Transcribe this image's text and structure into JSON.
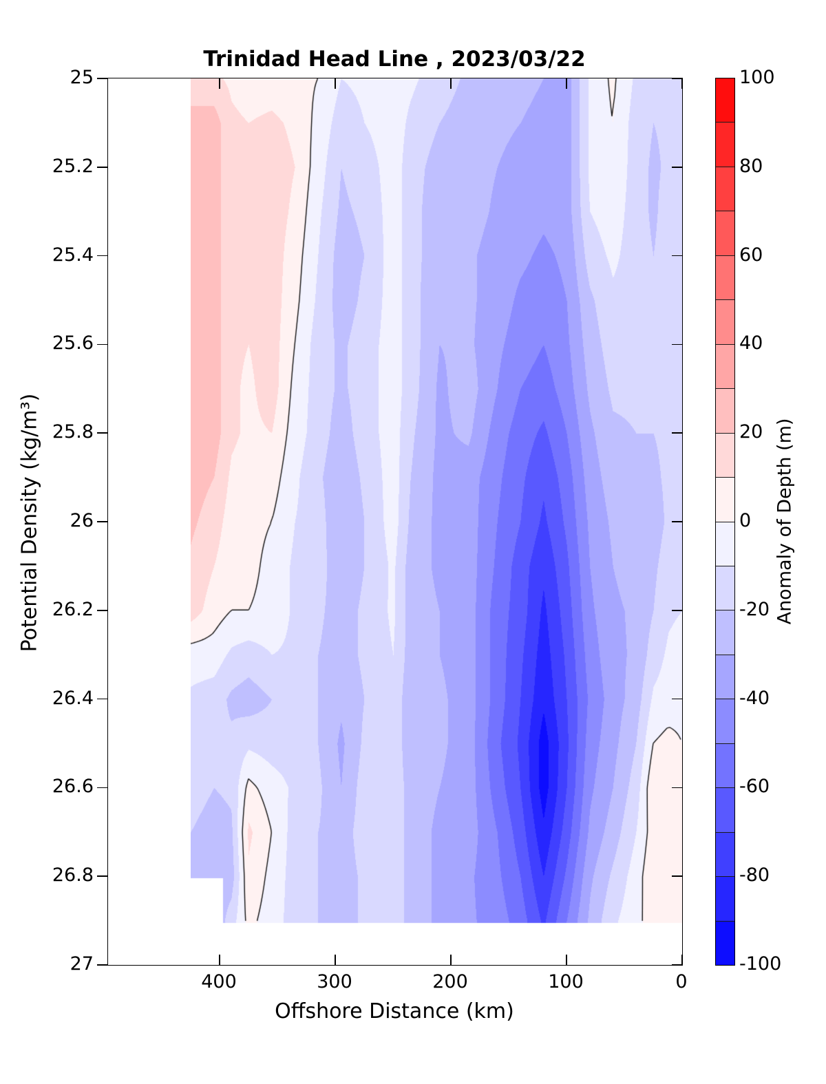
{
  "title": "Trinidad Head Line , 2023/03/22",
  "axes": {
    "xlabel": "Offshore Distance (km)",
    "ylabel": "Potential Density (kg/m³)",
    "x_ticks": [
      400,
      300,
      200,
      100,
      0
    ],
    "y_ticks": [
      25,
      25.2,
      25.4,
      25.6,
      25.8,
      26,
      26.2,
      26.4,
      26.6,
      26.8,
      27
    ]
  },
  "colorbar": {
    "label": "Anomaly of Depth (m)",
    "ticks": [
      100,
      80,
      60,
      40,
      20,
      0,
      -20,
      -40,
      -60,
      -80,
      -100
    ],
    "range": [
      -100,
      100
    ],
    "levels_top_to_bottom": [
      "#ff0d0d",
      "#ff2626",
      "#ff4040",
      "#ff5959",
      "#ff7373",
      "#ff8c8c",
      "#ffa6a6",
      "#ffbfbf",
      "#ffd9d9",
      "#fff2f2",
      "#f2f2ff",
      "#d9d9ff",
      "#bfbfff",
      "#a6a6ff",
      "#8c8cff",
      "#7373ff",
      "#5959ff",
      "#4040ff",
      "#2626ff",
      "#0d0dff"
    ]
  },
  "chart_data": {
    "type": "heatmap",
    "style": "filled-contour-with-zero-contour-lines",
    "title": "Trinidad Head Line , 2023/03/22",
    "xlabel": "Offshore Distance (km)",
    "ylabel": "Potential Density (kg/m³)",
    "zlabel": "Anomaly of Depth (m)",
    "xlim": [
      0,
      496
    ],
    "x_axis_reversed": true,
    "ylim": [
      25,
      27
    ],
    "y_axis_increases_downward": true,
    "zlim": [
      -100,
      100
    ],
    "contour_interval_m": 10,
    "x_km": [
      425,
      405,
      390,
      375,
      355,
      335,
      315,
      295,
      275,
      250,
      235,
      210,
      185,
      160,
      140,
      120,
      100,
      80,
      60,
      40,
      25,
      12,
      0
    ],
    "rho_rows": [
      25.0,
      25.1,
      25.2,
      25.3,
      25.4,
      25.5,
      25.6,
      25.7,
      25.8,
      25.9,
      26.0,
      26.1,
      26.2,
      26.3,
      26.4,
      26.5,
      26.6,
      26.7,
      26.8,
      26.9
    ],
    "bottom_rho_per_column": [
      26.8,
      26.8,
      26.9,
      26.9,
      26.9,
      26.9,
      26.9,
      26.9,
      26.9,
      26.9,
      26.9,
      26.9,
      26.9,
      26.9,
      26.9,
      26.9,
      26.9,
      26.9,
      26.9,
      26.9,
      26.9,
      26.9,
      26.9
    ],
    "anomaly_m_grid": [
      [
        12,
        12,
        8,
        5,
        5,
        3,
        0,
        -10,
        -8,
        -5,
        -8,
        -15,
        -22,
        -25,
        -28,
        -30,
        -35,
        -8,
        2,
        -12,
        -18,
        -15,
        -12
      ],
      [
        25,
        25,
        12,
        10,
        12,
        8,
        -3,
        -15,
        -10,
        -5,
        -12,
        -20,
        -25,
        -28,
        -30,
        -32,
        -35,
        -8,
        0,
        -15,
        -20,
        -18,
        -15
      ],
      [
        25,
        25,
        12,
        12,
        15,
        10,
        -5,
        -20,
        -15,
        -5,
        -15,
        -25,
        -25,
        -30,
        -33,
        -35,
        -35,
        -8,
        -2,
        -15,
        -22,
        -18,
        -15
      ],
      [
        25,
        25,
        12,
        12,
        15,
        8,
        -8,
        -22,
        -18,
        -5,
        -15,
        -28,
        -25,
        -32,
        -35,
        -38,
        -35,
        -10,
        -5,
        -15,
        -22,
        -15,
        -12
      ],
      [
        25,
        25,
        12,
        12,
        15,
        5,
        -10,
        -25,
        -20,
        -5,
        -15,
        -28,
        -28,
        -35,
        -38,
        -42,
        -38,
        -15,
        -8,
        -15,
        -20,
        -15,
        -12
      ],
      [
        25,
        25,
        12,
        12,
        15,
        3,
        -12,
        -25,
        -18,
        -5,
        -15,
        -30,
        -28,
        -35,
        -42,
        -45,
        -40,
        -22,
        -12,
        -15,
        -20,
        -15,
        -12
      ],
      [
        25,
        25,
        12,
        10,
        15,
        0,
        -15,
        -22,
        -15,
        -5,
        -15,
        -30,
        -28,
        -38,
        -45,
        -50,
        -42,
        -25,
        -15,
        -18,
        -20,
        -15,
        -12
      ],
      [
        25,
        25,
        12,
        8,
        15,
        -3,
        -15,
        -22,
        -15,
        -5,
        -15,
        -32,
        -25,
        -40,
        -50,
        -55,
        -45,
        -28,
        -18,
        -18,
        -20,
        -15,
        -12
      ],
      [
        25,
        25,
        12,
        8,
        10,
        -5,
        -15,
        -25,
        -15,
        -5,
        -18,
        -32,
        -28,
        -45,
        -55,
        -62,
        -50,
        -32,
        -22,
        -20,
        -20,
        -18,
        -15
      ],
      [
        25,
        20,
        8,
        5,
        5,
        -8,
        -18,
        -28,
        -18,
        -5,
        -20,
        -33,
        -35,
        -48,
        -58,
        -68,
        -55,
        -35,
        -25,
        -22,
        -22,
        -18,
        -15
      ],
      [
        22,
        15,
        5,
        3,
        0,
        -10,
        -15,
        -30,
        -20,
        -5,
        -22,
        -33,
        -35,
        -50,
        -60,
        -72,
        -58,
        -38,
        -28,
        -25,
        -25,
        -18,
        -15
      ],
      [
        18,
        10,
        3,
        3,
        -3,
        -12,
        -15,
        -28,
        -20,
        -8,
        -25,
        -32,
        -35,
        -52,
        -65,
        -78,
        -62,
        -40,
        -30,
        -25,
        -22,
        -15,
        -12
      ],
      [
        15,
        5,
        0,
        0,
        -3,
        -12,
        -18,
        -25,
        -18,
        -8,
        -25,
        -30,
        -35,
        -55,
        -65,
        -82,
        -65,
        -42,
        -32,
        -28,
        -20,
        -12,
        -10
      ],
      [
        -5,
        -5,
        -12,
        -15,
        -10,
        -12,
        -20,
        -25,
        -18,
        -10,
        -25,
        -30,
        -35,
        -55,
        -68,
        -85,
        -68,
        -45,
        -33,
        -28,
        -15,
        -8,
        -5
      ],
      [
        -12,
        -15,
        -22,
        -25,
        -20,
        -15,
        -20,
        -28,
        -20,
        -12,
        -28,
        -28,
        -35,
        -55,
        -70,
        -88,
        -70,
        -48,
        -35,
        -25,
        -8,
        -5,
        -3
      ],
      [
        -15,
        -18,
        -18,
        -12,
        -15,
        -15,
        -20,
        -32,
        -18,
        -12,
        -28,
        -28,
        -35,
        -58,
        -72,
        -95,
        -72,
        -45,
        -33,
        -20,
        0,
        3,
        0
      ],
      [
        -15,
        -20,
        -18,
        3,
        -5,
        -12,
        -18,
        -30,
        -15,
        -12,
        -25,
        -30,
        -35,
        -55,
        -70,
        -95,
        -70,
        -42,
        -30,
        -15,
        8,
        8,
        3
      ],
      [
        -20,
        -25,
        -22,
        12,
        0,
        -15,
        -20,
        -25,
        -15,
        -12,
        -25,
        -32,
        -35,
        -50,
        -65,
        -88,
        -65,
        -38,
        -25,
        -10,
        5,
        3,
        0
      ],
      [
        -25,
        -28,
        -25,
        8,
        -3,
        -15,
        -20,
        -25,
        -18,
        -12,
        -25,
        -32,
        -38,
        -48,
        -60,
        -80,
        -58,
        -32,
        -18,
        -5,
        8,
        10,
        5
      ],
      [
        -25,
        -28,
        -15,
        3,
        -5,
        -15,
        -20,
        -25,
        -18,
        -12,
        -25,
        -32,
        -38,
        -45,
        -55,
        -72,
        -50,
        -28,
        -12,
        -3,
        5,
        8,
        3
      ]
    ]
  }
}
